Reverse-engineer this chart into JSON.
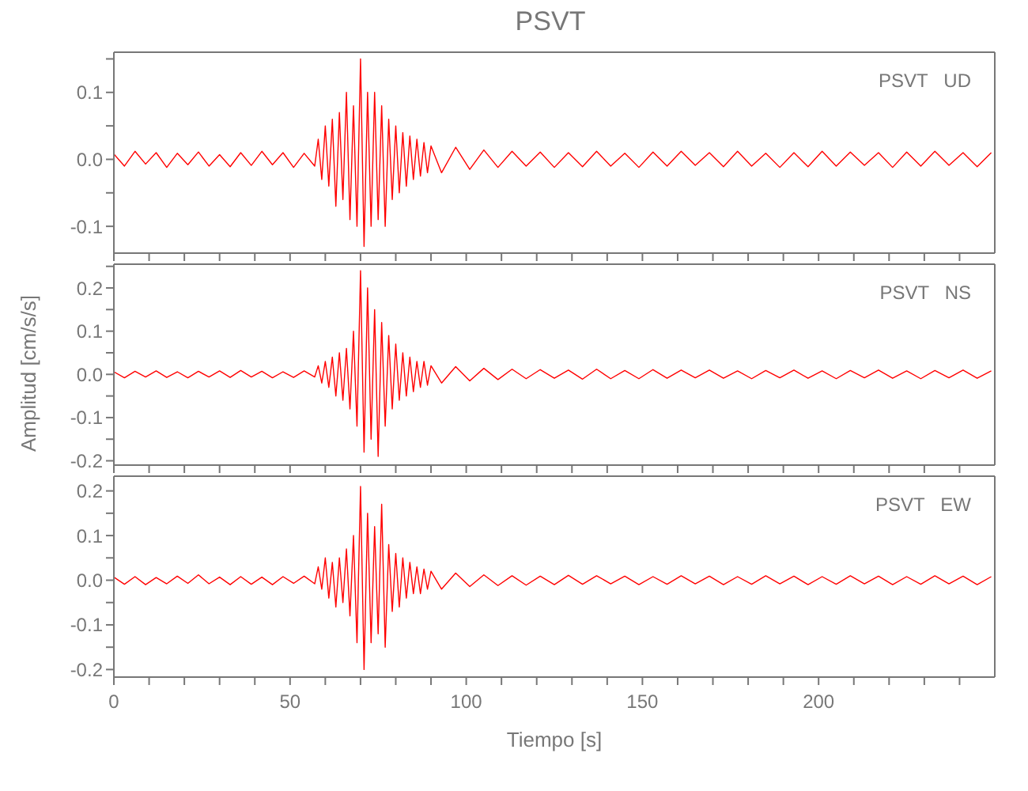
{
  "chart_data": [
    {
      "type": "line",
      "title": "PSVT",
      "annotations": [
        "PSVT   UD"
      ],
      "tick_labels": "y",
      "marker": "none",
      "line_style": "solid",
      "x": [
        0,
        3,
        6,
        9,
        12,
        15,
        18,
        21,
        24,
        27,
        30,
        33,
        36,
        39,
        42,
        45,
        48,
        51,
        54,
        57,
        58,
        59,
        60,
        61,
        62,
        63,
        64,
        65,
        66,
        67,
        68,
        69,
        70,
        71,
        72,
        73,
        74,
        75,
        76,
        77,
        78,
        79,
        80,
        81,
        82,
        83,
        84,
        85,
        86,
        87,
        88,
        89,
        90,
        93,
        97,
        101,
        105,
        109,
        113,
        117,
        121,
        125,
        129,
        133,
        137,
        141,
        145,
        149,
        153,
        157,
        161,
        165,
        169,
        173,
        177,
        181,
        185,
        189,
        193,
        197,
        201,
        205,
        209,
        213,
        217,
        221,
        225,
        229,
        233,
        237,
        241,
        245,
        249
      ],
      "series": [
        {
          "color": "#ff0000",
          "values": [
            0.008,
            -0.01,
            0.012,
            -0.007,
            0.01,
            -0.012,
            0.009,
            -0.008,
            0.011,
            -0.01,
            0.007,
            -0.011,
            0.01,
            -0.009,
            0.012,
            -0.008,
            0.01,
            -0.012,
            0.009,
            -0.01,
            0.03,
            -0.03,
            0.05,
            -0.04,
            0.06,
            -0.07,
            0.07,
            -0.06,
            0.1,
            -0.09,
            0.08,
            -0.1,
            0.15,
            -0.13,
            0.1,
            -0.1,
            0.1,
            -0.09,
            0.08,
            -0.1,
            0.06,
            -0.06,
            0.05,
            -0.05,
            0.04,
            -0.04,
            0.035,
            -0.03,
            0.03,
            -0.025,
            0.025,
            -0.02,
            0.02,
            -0.02,
            0.018,
            -0.015,
            0.014,
            -0.012,
            0.012,
            -0.01,
            0.011,
            -0.012,
            0.01,
            -0.011,
            0.012,
            -0.01,
            0.009,
            -0.012,
            0.011,
            -0.01,
            0.012,
            -0.009,
            0.01,
            -0.011,
            0.012,
            -0.01,
            0.009,
            -0.012,
            0.01,
            -0.011,
            0.012,
            -0.01,
            0.011,
            -0.009,
            0.01,
            -0.012,
            0.011,
            -0.01,
            0.012,
            -0.009,
            0.01,
            -0.011,
            0.01
          ]
        }
      ],
      "xlim": [
        0,
        250
      ],
      "xticks": [
        0,
        {
          "value": 10,
          "label": null
        },
        {
          "value": 20,
          "label": null
        },
        {
          "value": 30,
          "label": null
        },
        {
          "value": 40,
          "label": null
        },
        50,
        {
          "value": 60,
          "label": null
        },
        {
          "value": 70,
          "label": null
        },
        {
          "value": 80,
          "label": null
        },
        {
          "value": 90,
          "label": null
        },
        100,
        {
          "value": 110,
          "label": null
        },
        {
          "value": 120,
          "label": null
        },
        {
          "value": 130,
          "label": null
        },
        {
          "value": 140,
          "label": null
        },
        150,
        {
          "value": 160,
          "label": null
        },
        {
          "value": 170,
          "label": null
        },
        {
          "value": 180,
          "label": null
        },
        {
          "value": 190,
          "label": null
        },
        200,
        {
          "value": 210,
          "label": null
        },
        {
          "value": 220,
          "label": null
        },
        {
          "value": 230,
          "label": null
        },
        {
          "value": 240,
          "label": null
        }
      ],
      "ylim": [
        -0.14,
        0.16
      ],
      "yticks": [
        -0.1,
        {
          "value": -0.05,
          "label": null
        },
        {
          "value": 0,
          "label": "0.0"
        },
        {
          "value": 0.05,
          "label": null
        },
        0.1,
        {
          "value": 0.15,
          "label": null
        }
      ]
    },
    {
      "type": "line",
      "ylabel": "Amplitud [cm/s/s]",
      "annotations": [
        "PSVT   NS"
      ],
      "tick_labels": "y",
      "marker": "none",
      "line_style": "solid",
      "x": [
        0,
        3,
        6,
        9,
        12,
        15,
        18,
        21,
        24,
        27,
        30,
        33,
        36,
        39,
        42,
        45,
        48,
        51,
        54,
        57,
        58,
        59,
        60,
        61,
        62,
        63,
        64,
        65,
        66,
        67,
        68,
        69,
        70,
        71,
        72,
        73,
        74,
        75,
        76,
        77,
        78,
        79,
        80,
        81,
        82,
        83,
        84,
        85,
        86,
        87,
        88,
        89,
        90,
        93,
        97,
        101,
        105,
        109,
        113,
        117,
        121,
        125,
        129,
        133,
        137,
        141,
        145,
        149,
        153,
        157,
        161,
        165,
        169,
        173,
        177,
        181,
        185,
        189,
        193,
        197,
        201,
        205,
        209,
        213,
        217,
        221,
        225,
        229,
        233,
        237,
        241,
        245,
        249
      ],
      "series": [
        {
          "color": "#ff0000",
          "values": [
            0.006,
            -0.008,
            0.007,
            -0.006,
            0.008,
            -0.007,
            0.006,
            -0.008,
            0.007,
            -0.006,
            0.008,
            -0.007,
            0.009,
            -0.006,
            0.007,
            -0.008,
            0.006,
            -0.007,
            0.008,
            -0.006,
            0.02,
            -0.02,
            0.03,
            -0.03,
            0.04,
            -0.05,
            0.05,
            -0.06,
            0.06,
            -0.08,
            0.1,
            -0.12,
            0.24,
            -0.18,
            0.2,
            -0.15,
            0.15,
            -0.19,
            0.12,
            -0.12,
            0.09,
            -0.08,
            0.07,
            -0.06,
            0.05,
            -0.05,
            0.04,
            -0.04,
            0.03,
            -0.03,
            0.03,
            -0.025,
            0.02,
            -0.02,
            0.018,
            -0.015,
            0.014,
            -0.012,
            0.012,
            -0.01,
            0.011,
            -0.009,
            0.01,
            -0.011,
            0.012,
            -0.01,
            0.009,
            -0.01,
            0.011,
            -0.009,
            0.01,
            -0.008,
            0.01,
            -0.009,
            0.008,
            -0.01,
            0.009,
            -0.008,
            0.01,
            -0.009,
            0.008,
            -0.01,
            0.009,
            -0.008,
            0.01,
            -0.009,
            0.008,
            -0.01,
            0.009,
            -0.008,
            0.01,
            -0.009,
            0.008
          ]
        }
      ],
      "xlim": [
        0,
        250
      ],
      "xticks": [
        0,
        {
          "value": 10,
          "label": null
        },
        {
          "value": 20,
          "label": null
        },
        {
          "value": 30,
          "label": null
        },
        {
          "value": 40,
          "label": null
        },
        50,
        {
          "value": 60,
          "label": null
        },
        {
          "value": 70,
          "label": null
        },
        {
          "value": 80,
          "label": null
        },
        {
          "value": 90,
          "label": null
        },
        100,
        {
          "value": 110,
          "label": null
        },
        {
          "value": 120,
          "label": null
        },
        {
          "value": 130,
          "label": null
        },
        {
          "value": 140,
          "label": null
        },
        150,
        {
          "value": 160,
          "label": null
        },
        {
          "value": 170,
          "label": null
        },
        {
          "value": 180,
          "label": null
        },
        {
          "value": 190,
          "label": null
        },
        200,
        {
          "value": 210,
          "label": null
        },
        {
          "value": 220,
          "label": null
        },
        {
          "value": 230,
          "label": null
        },
        {
          "value": 240,
          "label": null
        }
      ],
      "ylim": [
        -0.21,
        0.255
      ],
      "yticks": [
        -0.2,
        {
          "value": -0.15,
          "label": null
        },
        -0.1,
        {
          "value": -0.05,
          "label": null
        },
        {
          "value": 0,
          "label": "0.0"
        },
        {
          "value": 0.05,
          "label": null
        },
        0.1,
        {
          "value": 0.15,
          "label": null
        },
        0.2,
        {
          "value": 0.25,
          "label": null
        }
      ]
    },
    {
      "type": "line",
      "xlabel": "Tiempo [s]",
      "annotations": [
        "PSVT   EW"
      ],
      "marker": "none",
      "line_style": "solid",
      "x": [
        0,
        3,
        6,
        9,
        12,
        15,
        18,
        21,
        24,
        27,
        30,
        33,
        36,
        39,
        42,
        45,
        48,
        51,
        54,
        57,
        58,
        59,
        60,
        61,
        62,
        63,
        64,
        65,
        66,
        67,
        68,
        69,
        70,
        71,
        72,
        73,
        74,
        75,
        76,
        77,
        78,
        79,
        80,
        81,
        82,
        83,
        84,
        85,
        86,
        87,
        88,
        89,
        90,
        93,
        97,
        101,
        105,
        109,
        113,
        117,
        121,
        125,
        129,
        133,
        137,
        141,
        145,
        149,
        153,
        157,
        161,
        165,
        169,
        173,
        177,
        181,
        185,
        189,
        193,
        197,
        201,
        205,
        209,
        213,
        217,
        221,
        225,
        229,
        233,
        237,
        241,
        245,
        249
      ],
      "series": [
        {
          "color": "#ff0000",
          "values": [
            0.007,
            -0.009,
            0.008,
            -0.01,
            0.006,
            -0.008,
            0.009,
            -0.007,
            0.012,
            -0.008,
            0.007,
            -0.01,
            0.008,
            -0.009,
            0.007,
            -0.01,
            0.008,
            -0.007,
            0.009,
            -0.008,
            0.03,
            -0.02,
            0.05,
            -0.04,
            0.04,
            -0.06,
            0.05,
            -0.05,
            0.07,
            -0.08,
            0.1,
            -0.14,
            0.21,
            -0.2,
            0.15,
            -0.14,
            0.12,
            -0.12,
            0.17,
            -0.15,
            0.08,
            -0.07,
            0.06,
            -0.06,
            0.05,
            -0.04,
            0.04,
            -0.03,
            0.03,
            -0.03,
            0.025,
            -0.02,
            0.02,
            -0.02,
            0.016,
            -0.014,
            0.012,
            -0.012,
            0.01,
            -0.011,
            0.009,
            -0.01,
            0.011,
            -0.009,
            0.01,
            -0.008,
            0.009,
            -0.01,
            0.008,
            -0.009,
            0.01,
            -0.008,
            0.009,
            -0.01,
            0.008,
            -0.009,
            0.01,
            -0.008,
            0.009,
            -0.01,
            0.008,
            -0.009,
            0.01,
            -0.008,
            0.009,
            -0.01,
            0.008,
            -0.009,
            0.01,
            -0.008,
            0.009,
            -0.01,
            0.008
          ]
        }
      ],
      "xlim": [
        0,
        250
      ],
      "xticks": [
        0,
        {
          "value": 10,
          "label": null
        },
        {
          "value": 20,
          "label": null
        },
        {
          "value": 30,
          "label": null
        },
        {
          "value": 40,
          "label": null
        },
        50,
        {
          "value": 60,
          "label": null
        },
        {
          "value": 70,
          "label": null
        },
        {
          "value": 80,
          "label": null
        },
        {
          "value": 90,
          "label": null
        },
        100,
        {
          "value": 110,
          "label": null
        },
        {
          "value": 120,
          "label": null
        },
        {
          "value": 130,
          "label": null
        },
        {
          "value": 140,
          "label": null
        },
        150,
        {
          "value": 160,
          "label": null
        },
        {
          "value": 170,
          "label": null
        },
        {
          "value": 180,
          "label": null
        },
        {
          "value": 190,
          "label": null
        },
        200,
        {
          "value": 210,
          "label": null
        },
        {
          "value": 220,
          "label": null
        },
        {
          "value": 230,
          "label": null
        },
        {
          "value": 240,
          "label": null
        }
      ],
      "ylim": [
        -0.217,
        0.233
      ],
      "yticks": [
        -0.2,
        {
          "value": -0.15,
          "label": null
        },
        -0.1,
        {
          "value": -0.05,
          "label": null
        },
        {
          "value": 0,
          "label": "0.0"
        },
        {
          "value": 0.05,
          "label": null
        },
        0.1,
        {
          "value": 0.15,
          "label": null
        },
        0.2
      ]
    }
  ]
}
